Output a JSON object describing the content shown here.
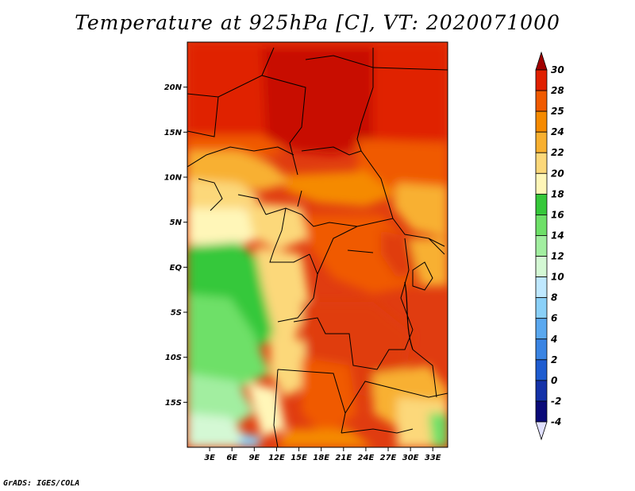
{
  "title": "Temperature at 925hPa [C], VT: 2020071000",
  "footer": "GrADS: IGES/COLA",
  "map": {
    "lon_range": [
      0,
      35
    ],
    "lat_range": [
      -20,
      25
    ],
    "lat_ticks": [
      "20N",
      "15N",
      "10N",
      "5N",
      "EQ",
      "5S",
      "10S",
      "15S"
    ],
    "lon_ticks": [
      "3E",
      "6E",
      "9E",
      "12E",
      "15E",
      "18E",
      "21E",
      "24E",
      "27E",
      "30E",
      "33E"
    ]
  },
  "colorbar": {
    "labels": [
      "30",
      "28",
      "25",
      "24",
      "22",
      "20",
      "18",
      "16",
      "14",
      "12",
      "10",
      "8",
      "6",
      "4",
      "2",
      "0",
      "-2",
      "-4"
    ],
    "colors": [
      "#a00000",
      "#e02000",
      "#f05a00",
      "#f58a00",
      "#f8b030",
      "#fcd87a",
      "#fff6b8",
      "#36c83a",
      "#6ee068",
      "#a2eea0",
      "#d4f8d4",
      "#bfe8ff",
      "#8ad0f8",
      "#5aa8ef",
      "#3a84e3",
      "#1e5cd0",
      "#1432a8",
      "#0a0a78",
      "#e0e0ff"
    ]
  }
}
